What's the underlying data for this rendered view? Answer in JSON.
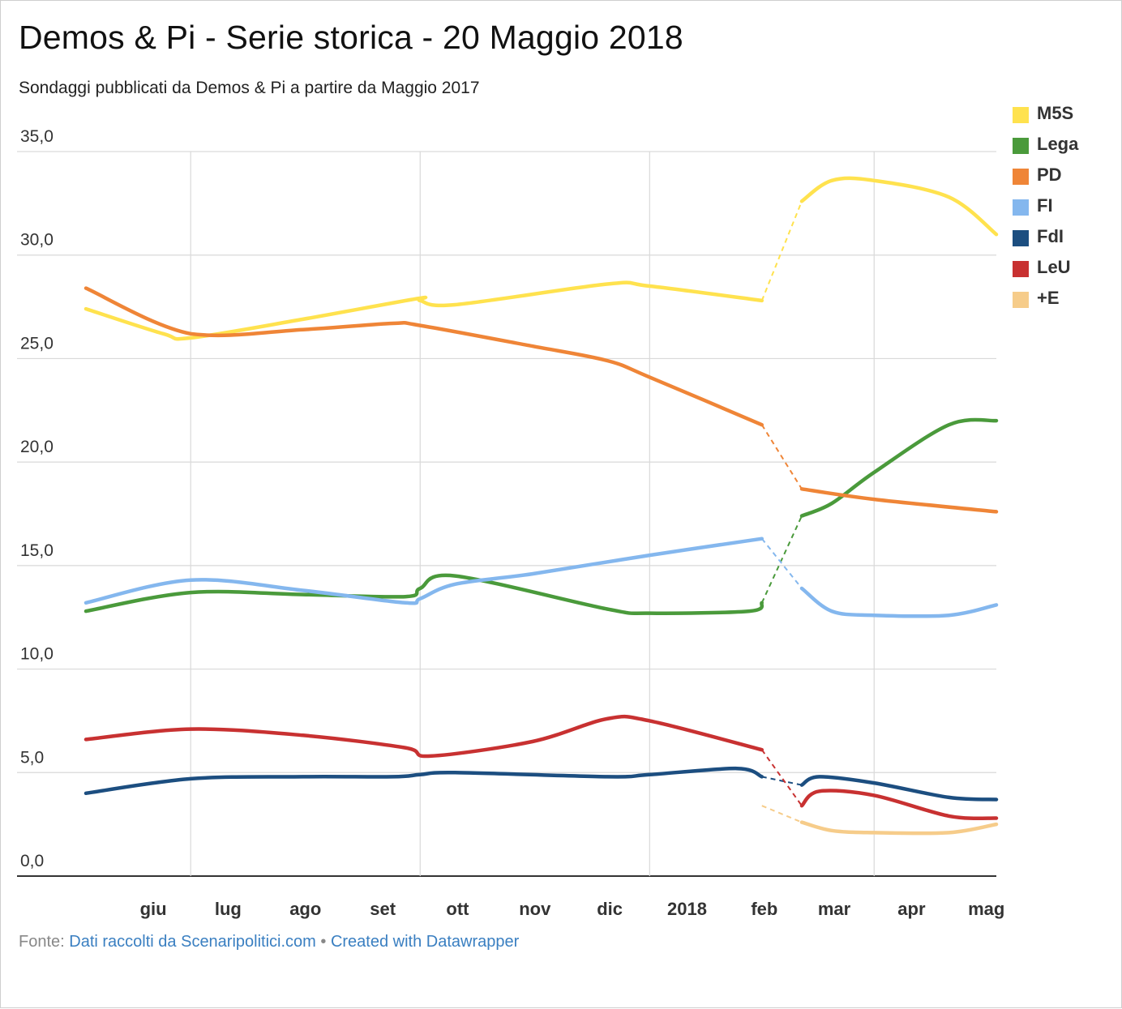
{
  "colors": {
    "M5S": "#ffe24e",
    "Lega": "#4a9a3b",
    "PD": "#ef8537",
    "FI": "#84b7ee",
    "FdI": "#1c4e80",
    "LeU": "#c83131",
    "+E": "#f6cc8a",
    "grid": "#d9d9d9",
    "axis": "#333333",
    "link": "#3a7fc1",
    "footer_text": "#888888"
  },
  "footer": {
    "prefix": "Fonte: ",
    "source_link": "Dati raccolti da Scenaripolitici.com",
    "separator": " • ",
    "created_link": "Created with Datawrapper"
  },
  "chart_data": {
    "type": "line",
    "title": "Demos & Pi - Serie storica - 20 Maggio 2018",
    "subtitle": "Sondaggi pubblicati da Demos & Pi a partire da Maggio 2017",
    "ylim": [
      0,
      35
    ],
    "yticks": [
      0,
      5,
      10,
      15,
      20,
      25,
      30,
      35
    ],
    "ytick_labels": [
      "0,0",
      "5,0",
      "10,0",
      "15,0",
      "20,0",
      "25,0",
      "30,0",
      "35,0"
    ],
    "xlim": [
      "2017-05-20",
      "2018-05-20"
    ],
    "x_gridlines": [
      "2017-07-01",
      "2017-10-01",
      "2018-01-01",
      "2018-04-01"
    ],
    "xtick_labels": [
      {
        "label": "giu",
        "date": "2017-06-16"
      },
      {
        "label": "lug",
        "date": "2017-07-16"
      },
      {
        "label": "ago",
        "date": "2017-08-16"
      },
      {
        "label": "set",
        "date": "2017-09-16"
      },
      {
        "label": "ott",
        "date": "2017-10-16"
      },
      {
        "label": "nov",
        "date": "2017-11-16"
      },
      {
        "label": "dic",
        "date": "2017-12-16"
      },
      {
        "label": "2018",
        "date": "2018-01-16"
      },
      {
        "label": "feb",
        "date": "2018-02-16"
      },
      {
        "label": "mar",
        "date": "2018-03-16"
      },
      {
        "label": "apr",
        "date": "2018-04-16"
      },
      {
        "label": "mag",
        "date": "2018-05-16"
      }
    ],
    "gap_start": "2018-02-15",
    "gap_end": "2018-03-03",
    "legend_position": "right",
    "grid": true,
    "series": [
      {
        "name": "M5S",
        "x": [
          "2017-05-20",
          "2017-06-20",
          "2017-07-01",
          "2017-08-15",
          "2017-09-30",
          "2017-10-01",
          "2017-10-15",
          "2017-12-15",
          "2018-01-01",
          "2018-02-15",
          "2018-03-03",
          "2018-03-15",
          "2018-04-01",
          "2018-05-01",
          "2018-05-20"
        ],
        "values": [
          27.4,
          26.2,
          26.0,
          26.9,
          27.9,
          27.8,
          27.6,
          28.6,
          28.5,
          27.8,
          32.6,
          33.6,
          33.6,
          32.8,
          31.0
        ]
      },
      {
        "name": "Lega",
        "x": [
          "2017-05-20",
          "2017-07-01",
          "2017-08-15",
          "2017-09-25",
          "2017-10-01",
          "2017-10-15",
          "2017-12-15",
          "2018-01-01",
          "2018-02-10",
          "2018-02-15",
          "2018-03-03",
          "2018-03-15",
          "2018-04-01",
          "2018-05-01",
          "2018-05-20"
        ],
        "values": [
          12.8,
          13.7,
          13.6,
          13.5,
          13.9,
          14.5,
          12.9,
          12.7,
          12.8,
          13.2,
          17.4,
          18.0,
          19.5,
          21.8,
          22.0
        ]
      },
      {
        "name": "PD",
        "x": [
          "2017-05-20",
          "2017-07-01",
          "2017-08-15",
          "2017-09-20",
          "2017-10-01",
          "2017-11-15",
          "2017-12-15",
          "2018-01-01",
          "2018-02-15",
          "2018-03-03",
          "2018-04-01",
          "2018-05-20"
        ],
        "values": [
          28.4,
          26.2,
          26.4,
          26.7,
          26.6,
          25.6,
          24.9,
          24.1,
          21.8,
          18.7,
          18.2,
          17.6
        ]
      },
      {
        "name": "FI",
        "x": [
          "2017-05-20",
          "2017-07-01",
          "2017-08-15",
          "2017-09-25",
          "2017-10-01",
          "2017-10-15",
          "2017-11-15",
          "2018-01-01",
          "2018-02-15",
          "2018-03-03",
          "2018-03-15",
          "2018-04-01",
          "2018-05-01",
          "2018-05-20"
        ],
        "values": [
          13.2,
          14.3,
          13.8,
          13.2,
          13.4,
          14.1,
          14.6,
          15.5,
          16.3,
          13.9,
          12.8,
          12.6,
          12.6,
          13.1
        ]
      },
      {
        "name": "FdI",
        "x": [
          "2017-05-20",
          "2017-07-01",
          "2017-08-15",
          "2017-09-20",
          "2017-10-01",
          "2017-10-15",
          "2017-12-15",
          "2018-01-01",
          "2018-02-05",
          "2018-02-15",
          "2018-03-03",
          "2018-03-10",
          "2018-04-01",
          "2018-05-01",
          "2018-05-20"
        ],
        "values": [
          4.0,
          4.7,
          4.8,
          4.8,
          4.9,
          5.0,
          4.8,
          4.9,
          5.2,
          4.8,
          4.4,
          4.8,
          4.5,
          3.8,
          3.7
        ]
      },
      {
        "name": "LeU",
        "x": [
          "2017-05-20",
          "2017-07-01",
          "2017-08-15",
          "2017-09-25",
          "2017-10-05",
          "2017-11-15",
          "2017-12-15",
          "2018-01-01",
          "2018-02-15",
          "2018-03-03",
          "2018-03-10",
          "2018-04-01",
          "2018-05-01",
          "2018-05-20"
        ],
        "values": [
          6.6,
          7.1,
          6.8,
          6.2,
          5.8,
          6.5,
          7.6,
          7.5,
          6.1,
          3.4,
          4.1,
          3.9,
          2.9,
          2.8
        ]
      },
      {
        "name": "+E",
        "x": [
          "2018-02-15",
          "2018-03-03",
          "2018-03-15",
          "2018-04-01",
          "2018-05-01",
          "2018-05-20"
        ],
        "values": [
          3.4,
          2.6,
          2.2,
          2.1,
          2.1,
          2.5
        ]
      }
    ]
  }
}
